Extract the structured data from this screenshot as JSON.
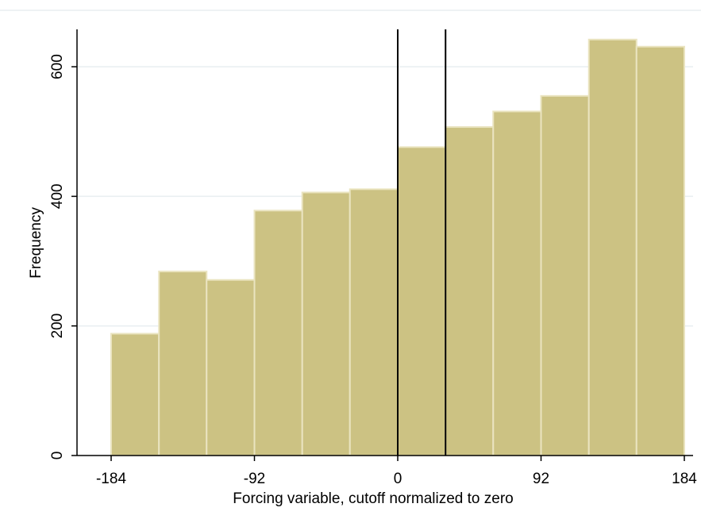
{
  "chart_data": {
    "type": "bar",
    "title": "",
    "xlabel": "Forcing variable, cutoff normalized to zero",
    "ylabel": "Frequency",
    "xlim": [
      -184,
      184
    ],
    "ylim": [
      0,
      660
    ],
    "x_ticks": [
      -184,
      -92,
      0,
      92,
      184
    ],
    "x_tick_labels": [
      "-184",
      "-92",
      "0",
      "92",
      "184"
    ],
    "y_ticks": [
      0,
      200,
      400,
      600
    ],
    "y_tick_labels": [
      "0",
      "200",
      "400",
      "600"
    ],
    "grid": true,
    "bins": [
      {
        "start": -184,
        "end": -153.3,
        "value": 188
      },
      {
        "start": -153.3,
        "end": -122.7,
        "value": 284
      },
      {
        "start": -122.7,
        "end": -92,
        "value": 271
      },
      {
        "start": -92,
        "end": -61.3,
        "value": 378
      },
      {
        "start": -61.3,
        "end": -30.7,
        "value": 406
      },
      {
        "start": -30.7,
        "end": 0,
        "value": 411
      },
      {
        "start": 0,
        "end": 30.7,
        "value": 476
      },
      {
        "start": 30.7,
        "end": 61.3,
        "value": 507
      },
      {
        "start": 61.3,
        "end": 92,
        "value": 531
      },
      {
        "start": 92,
        "end": 122.7,
        "value": 555
      },
      {
        "start": 122.7,
        "end": 153.3,
        "value": 642
      },
      {
        "start": 153.3,
        "end": 184,
        "value": 631
      }
    ],
    "vertical_lines": [
      0,
      30.7
    ],
    "colors": {
      "bar_fill": "#CCC283",
      "bar_edge": "#EAE4C0",
      "grid": "#E8EEF1",
      "axis": "#000000",
      "frame": "#EEF2F4"
    }
  }
}
